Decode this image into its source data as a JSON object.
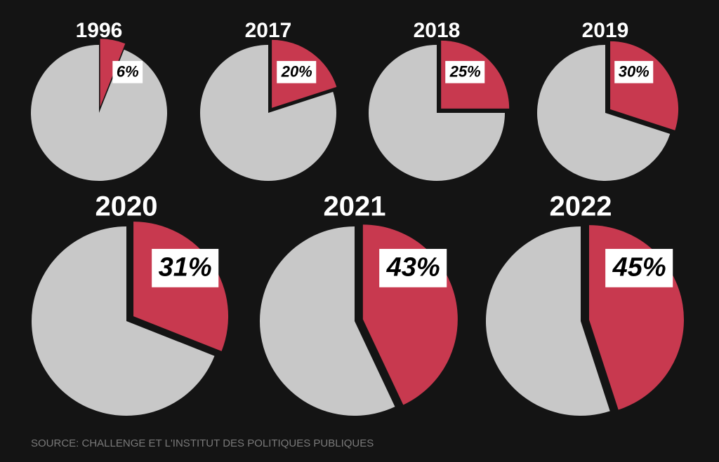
{
  "chart_data": [
    {
      "type": "pie",
      "title": "1996",
      "values": [
        6,
        94
      ],
      "value_labels": [
        "6%",
        null
      ],
      "colors": [
        "#c8394f",
        "#c8c8c8"
      ]
    },
    {
      "type": "pie",
      "title": "2017",
      "values": [
        20,
        80
      ],
      "value_labels": [
        "20%",
        null
      ],
      "colors": [
        "#c8394f",
        "#c8c8c8"
      ]
    },
    {
      "type": "pie",
      "title": "2018",
      "values": [
        25,
        75
      ],
      "value_labels": [
        "25%",
        null
      ],
      "colors": [
        "#c8394f",
        "#c8c8c8"
      ]
    },
    {
      "type": "pie",
      "title": "2019",
      "values": [
        30,
        70
      ],
      "value_labels": [
        "30%",
        null
      ],
      "colors": [
        "#c8394f",
        "#c8c8c8"
      ]
    },
    {
      "type": "pie",
      "title": "2020",
      "values": [
        31,
        69
      ],
      "value_labels": [
        "31%",
        null
      ],
      "colors": [
        "#c8394f",
        "#c8c8c8"
      ]
    },
    {
      "type": "pie",
      "title": "2021",
      "values": [
        43,
        57
      ],
      "value_labels": [
        "43%",
        null
      ],
      "colors": [
        "#c8394f",
        "#c8c8c8"
      ]
    },
    {
      "type": "pie",
      "title": "2022",
      "values": [
        45,
        55
      ],
      "value_labels": [
        "45%",
        null
      ],
      "colors": [
        "#c8394f",
        "#c8c8c8"
      ]
    }
  ],
  "source": "SOURCE: CHALLENGE ET L'INSTITUT DES POLITIQUES PUBLIQUES"
}
